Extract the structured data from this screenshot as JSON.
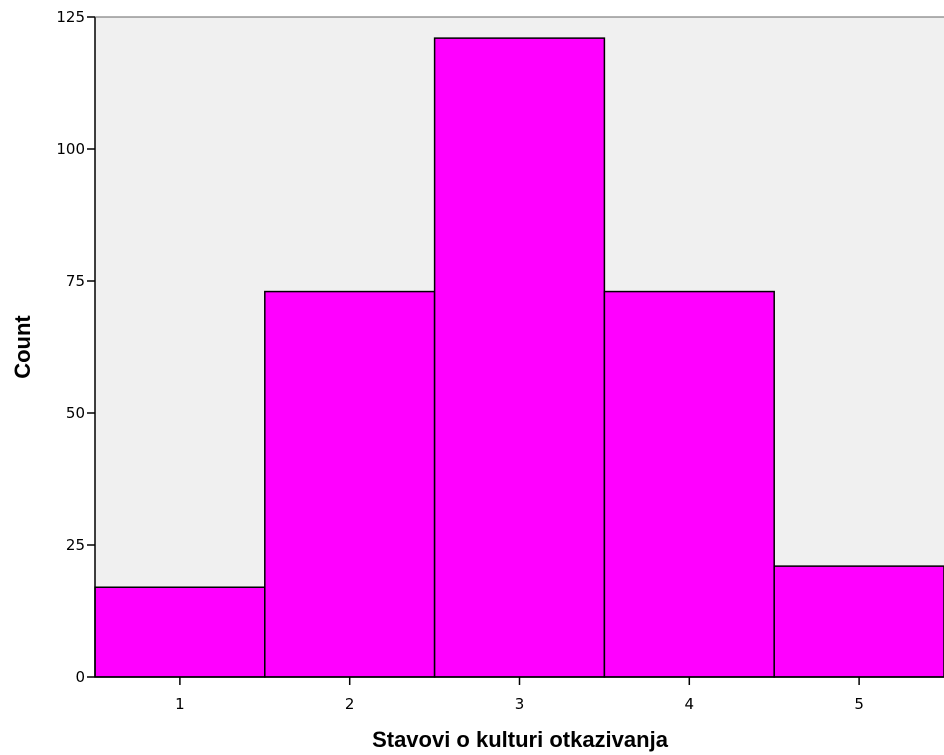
{
  "chart_data": {
    "type": "bar",
    "categories": [
      "1",
      "2",
      "3",
      "4",
      "5"
    ],
    "values": [
      17,
      73,
      121,
      73,
      21
    ],
    "title": "",
    "xlabel": "Stavovi o kulturi otkazivanja",
    "ylabel": "Count",
    "ylim": [
      0,
      125
    ],
    "yticks": [
      "0",
      "25",
      "50",
      "75",
      "100",
      "125"
    ],
    "grid": false,
    "legend": "none",
    "colors": {
      "bar_fill": "#FF00FF",
      "bar_stroke": "#000000",
      "plot_background": "#F0F0F0",
      "axis": "#000000"
    }
  }
}
